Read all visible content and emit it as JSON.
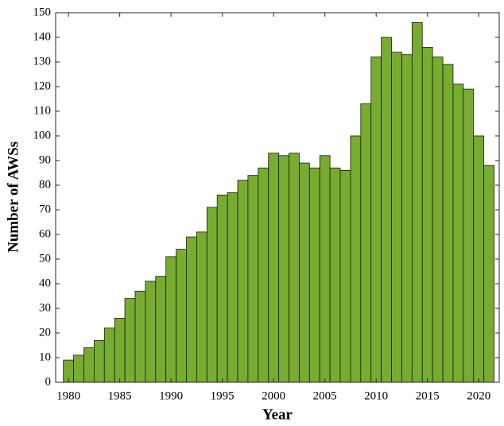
{
  "chart_data": {
    "type": "bar",
    "xlabel": "Year",
    "ylabel": "Number of AWSs",
    "x": [
      1980,
      1981,
      1982,
      1983,
      1984,
      1985,
      1986,
      1987,
      1988,
      1989,
      1990,
      1991,
      1992,
      1993,
      1994,
      1995,
      1996,
      1997,
      1998,
      1999,
      2000,
      2001,
      2002,
      2003,
      2004,
      2005,
      2006,
      2007,
      2008,
      2009,
      2010,
      2011,
      2012,
      2013,
      2014,
      2015,
      2016,
      2017,
      2018,
      2019,
      2020,
      2021
    ],
    "values": [
      9,
      11,
      14,
      17,
      22,
      26,
      34,
      37,
      41,
      43,
      51,
      54,
      59,
      61,
      71,
      76,
      77,
      82,
      84,
      87,
      93,
      92,
      93,
      89,
      87,
      92,
      87,
      86,
      100,
      113,
      132,
      140,
      134,
      133,
      146,
      136,
      132,
      129,
      121,
      119,
      100,
      88
    ],
    "color": "#77ac30",
    "xlim": [
      1978.75,
      2022
    ],
    "xticks": [
      1980,
      1985,
      1990,
      1995,
      2000,
      2005,
      2010,
      2015,
      2020
    ],
    "ylim": [
      0,
      150
    ],
    "yticks": [
      0,
      10,
      20,
      30,
      40,
      50,
      60,
      70,
      80,
      90,
      100,
      110,
      120,
      130,
      140,
      150
    ]
  }
}
